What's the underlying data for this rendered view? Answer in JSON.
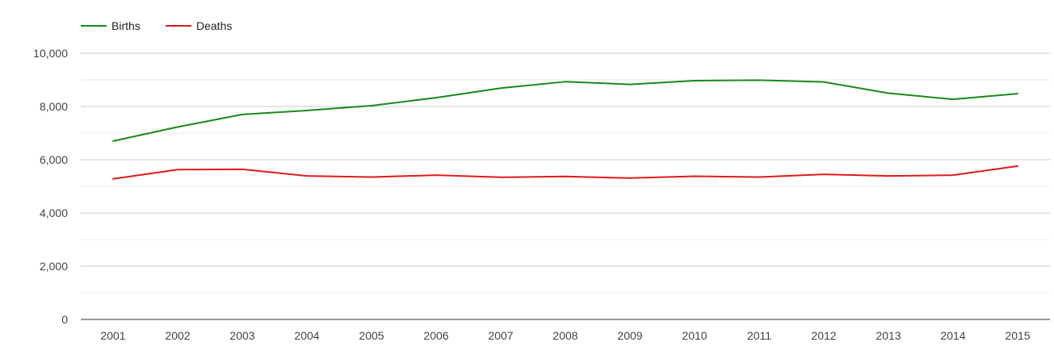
{
  "chart_data": {
    "type": "line",
    "title": "",
    "xlabel": "",
    "ylabel": "",
    "categories": [
      "2001",
      "2002",
      "2003",
      "2004",
      "2005",
      "2006",
      "2007",
      "2008",
      "2009",
      "2010",
      "2011",
      "2012",
      "2013",
      "2014",
      "2015"
    ],
    "series": [
      {
        "name": "Births",
        "color": "#1a8a1a",
        "values": [
          6700,
          7230,
          7700,
          7850,
          8030,
          8330,
          8690,
          8930,
          8830,
          8970,
          8990,
          8920,
          8500,
          8270,
          8480
        ]
      },
      {
        "name": "Deaths",
        "color": "#e01b1b",
        "values": [
          5280,
          5630,
          5640,
          5390,
          5350,
          5420,
          5340,
          5370,
          5310,
          5380,
          5350,
          5450,
          5390,
          5420,
          5760
        ]
      }
    ],
    "ylim": [
      0,
      10000
    ],
    "y_ticks": [
      "0",
      "2,000",
      "4,000",
      "6,000",
      "8,000",
      "10,000"
    ],
    "y_tick_values": [
      0,
      2000,
      4000,
      6000,
      8000,
      10000
    ],
    "grid": true,
    "legend_position": "top-left"
  }
}
